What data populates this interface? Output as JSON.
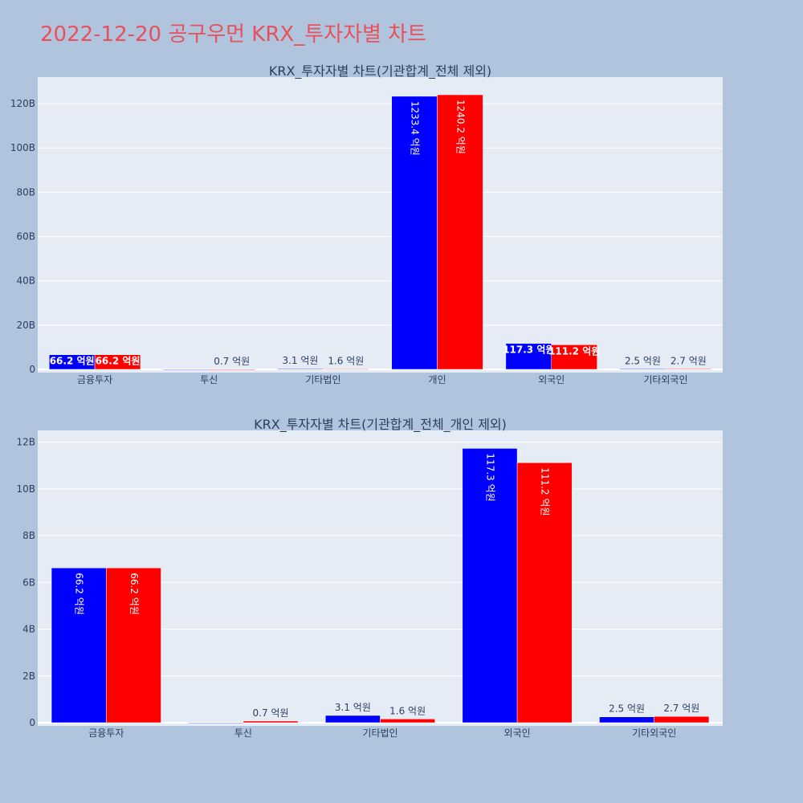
{
  "page_title": "2022-12-20 공구우먼 KRX_투자자별 차트",
  "colors": {
    "background": "#b0c4de",
    "plot_bg": "#e5ecf6",
    "title": "#e8505b",
    "series_a": "#0000ff",
    "series_b": "#ff0000"
  },
  "chart_data": [
    {
      "type": "bar",
      "title": "KRX_투자자별 차트(기관합계_전체 제외)",
      "categories": [
        "금융투자",
        "투신",
        "기타법인",
        "개인",
        "외국인",
        "기타외국인"
      ],
      "series": [
        {
          "color": "#0000ff",
          "values": [
            6620000000,
            0,
            310000000,
            123340000000,
            11730000000,
            250000000
          ],
          "labels": [
            "66.2 억원",
            "",
            "3.1 억원",
            "1233.4 억원",
            "117.3 억원",
            "2.5 억원"
          ]
        },
        {
          "color": "#ff0000",
          "values": [
            6620000000,
            70000000,
            160000000,
            124020000000,
            11120000000,
            270000000
          ],
          "labels": [
            "66.2 억원",
            "0.7 억원",
            "1.6 억원",
            "1240.2 억원",
            "111.2 억원",
            "2.7 억원"
          ]
        }
      ],
      "yticks": [
        0,
        20000000000,
        40000000000,
        60000000000,
        80000000000,
        100000000000,
        120000000000
      ],
      "ytick_labels": [
        "0",
        "20B",
        "40B",
        "60B",
        "80B",
        "100B",
        "120B"
      ],
      "ylim": [
        0,
        132000000000
      ],
      "grid": true
    },
    {
      "type": "bar",
      "title": "KRX_투자자별 차트(기관합계_전체_개인 제외)",
      "categories": [
        "금융투자",
        "투신",
        "기타법인",
        "외국인",
        "기타외국인"
      ],
      "series": [
        {
          "color": "#0000ff",
          "values": [
            6620000000,
            0,
            310000000,
            11730000000,
            250000000
          ],
          "labels": [
            "66.2 억원",
            "",
            "3.1 억원",
            "117.3 억원",
            "2.5 억원"
          ]
        },
        {
          "color": "#ff0000",
          "values": [
            6620000000,
            70000000,
            160000000,
            11120000000,
            270000000
          ],
          "labels": [
            "66.2 억원",
            "0.7 억원",
            "1.6 억원",
            "111.2 억원",
            "2.7 억원"
          ]
        }
      ],
      "yticks": [
        0,
        2000000000,
        4000000000,
        6000000000,
        8000000000,
        10000000000,
        12000000000
      ],
      "ytick_labels": [
        "0",
        "2B",
        "4B",
        "6B",
        "8B",
        "10B",
        "12B"
      ],
      "ylim": [
        0,
        12500000000
      ],
      "grid": true
    }
  ]
}
